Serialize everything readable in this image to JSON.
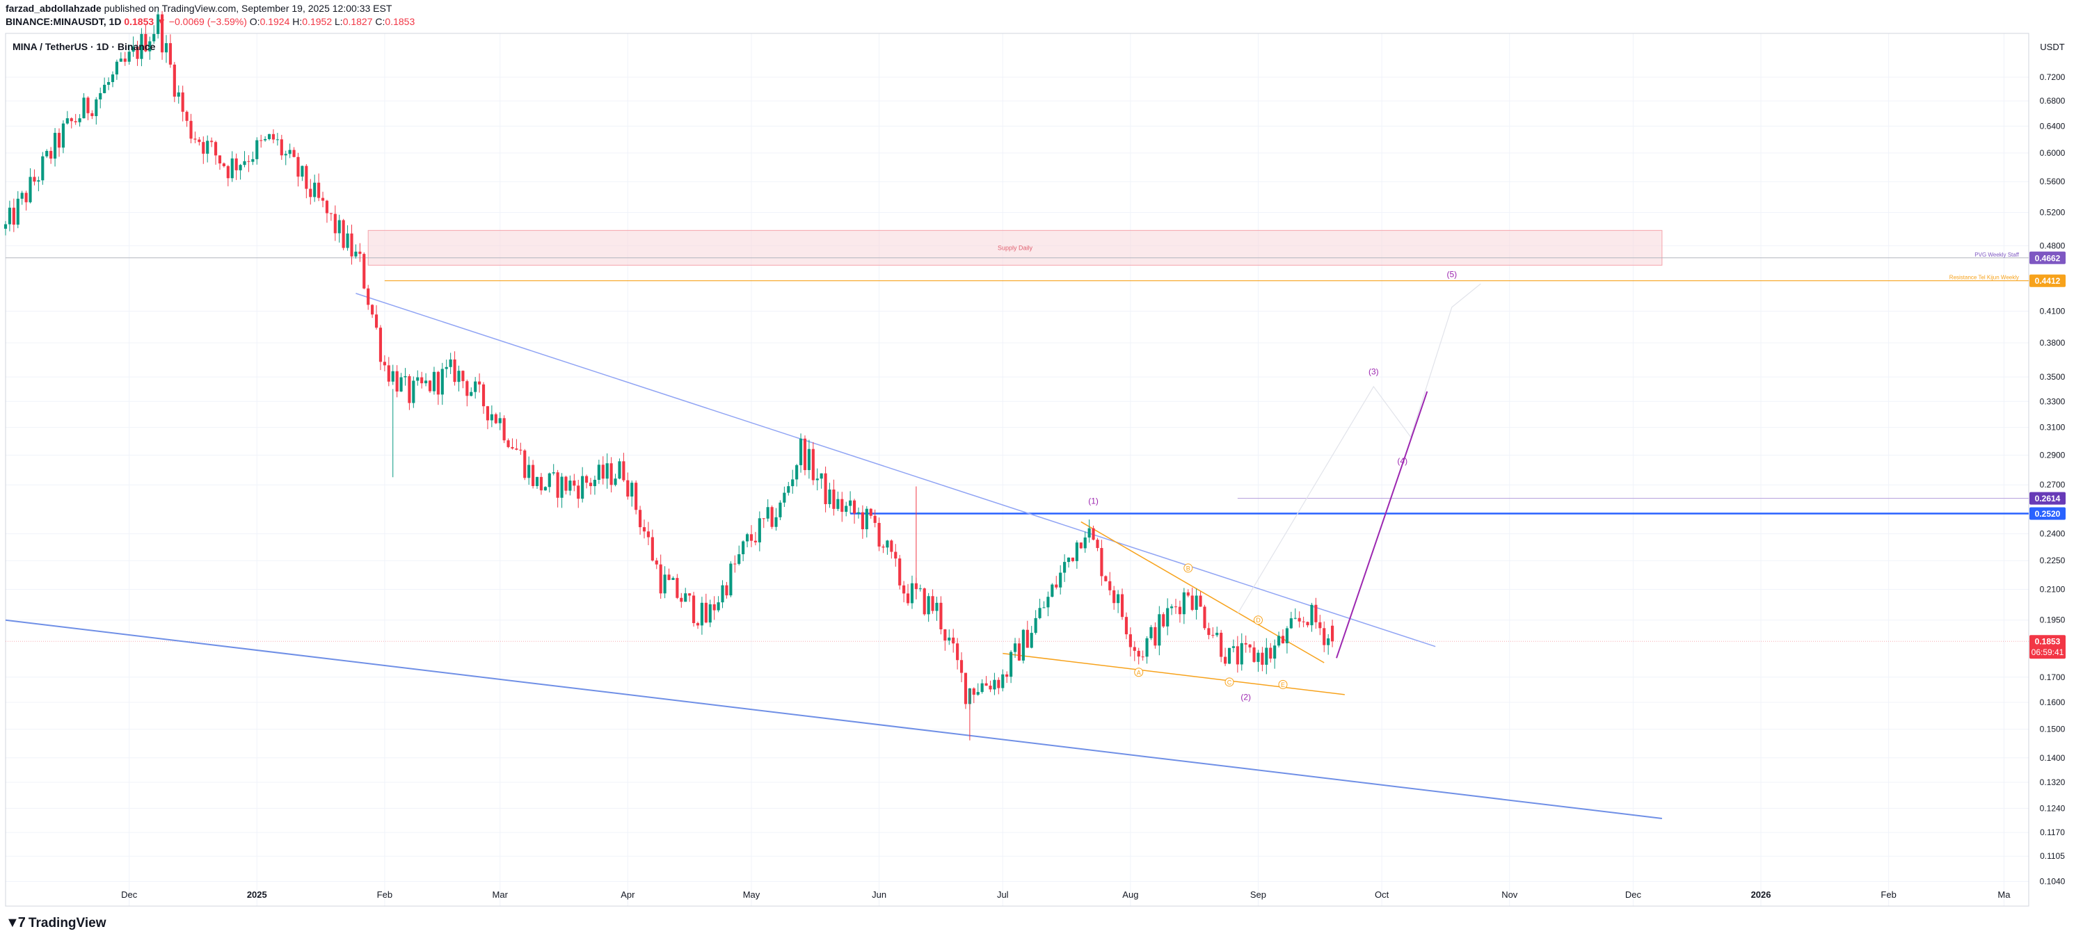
{
  "header": {
    "author": "farzad_abdollahzade",
    "published": "published on TradingView.com, September 19, 2025 12:00:33 EST",
    "symbol": "BINANCE:MINAUSDT, 1D",
    "last": "0.1853",
    "change": "▼ −0.0069 (−3.59%)",
    "o_label": "O:",
    "o": "0.1924",
    "h_label": "H:",
    "h": "0.1952",
    "l_label": "L:",
    "l": "0.1827",
    "c_label": "C:",
    "c": "0.1853"
  },
  "legend_title": "MINA / TetherUS · 1D · Binance",
  "footer": {
    "brand": "TradingView",
    "logo_icon": "tradingview-logo-icon"
  },
  "colors": {
    "up": "#089981",
    "down": "#f23645",
    "supply": "#f8d7da",
    "blue": "#2962ff",
    "orange": "#f7a21b",
    "purple": "#9c27b0"
  },
  "chart_data": {
    "type": "candlestick",
    "title": "MINA / TetherUS · 1D · Binance",
    "y_unit": "USDT",
    "y_scale": "log",
    "y_ticks": [
      "0.7200",
      "0.6800",
      "0.6400",
      "0.6000",
      "0.5600",
      "0.5200",
      "0.4800",
      "0.4100",
      "0.3800",
      "0.3500",
      "0.3300",
      "0.3100",
      "0.2900",
      "0.2700",
      "0.2400",
      "0.2250",
      "0.2100",
      "0.1950",
      "0.1700",
      "0.1600",
      "0.1500",
      "0.1400",
      "0.1320",
      "0.1240",
      "0.1170",
      "0.1105",
      "0.1040"
    ],
    "x_ticks": [
      "Dec",
      "2025",
      "Feb",
      "Mar",
      "Apr",
      "May",
      "Jun",
      "Jul",
      "Aug",
      "Sep",
      "Oct",
      "Nov",
      "Dec",
      "2026",
      "Feb",
      "Ma"
    ],
    "x_range": [
      "2024-11-01",
      "2026-03-07"
    ],
    "y_range": [
      0.098,
      0.8
    ],
    "price_label": {
      "value": "0.1853",
      "countdown": "06:59:41"
    },
    "levels": [
      {
        "label": "PVG Weekly Staff",
        "value": "0.4662"
      },
      {
        "label": "Resistance Tel Kijun Weekly",
        "value": "0.4412"
      },
      {
        "label": "",
        "value": "0.2614"
      },
      {
        "label": "",
        "value": "0.2520"
      }
    ],
    "supply_zone": {
      "label": "Supply Daily",
      "low": 0.458,
      "high": 0.498,
      "from": "2025-01-28",
      "to": "2025-12-08"
    },
    "wave_labels": [
      "(1)",
      "(2)",
      "(3)",
      "(4)",
      "(5)"
    ],
    "abc_labels": [
      "A",
      "B",
      "C",
      "D",
      "E"
    ],
    "anchors": [
      [
        "2024-11-01",
        0.5
      ],
      [
        "2024-11-15",
        0.63
      ],
      [
        "2024-11-30",
        0.74
      ],
      [
        "2024-12-08",
        0.82
      ],
      [
        "2024-12-15",
        0.64
      ],
      [
        "2024-12-25",
        0.58
      ],
      [
        "2025-01-05",
        0.62
      ],
      [
        "2025-01-15",
        0.54
      ],
      [
        "2025-01-26",
        0.46
      ],
      [
        "2025-02-01",
        0.36
      ],
      [
        "2025-02-07",
        0.335
      ],
      [
        "2025-02-18",
        0.355
      ],
      [
        "2025-03-01",
        0.315
      ],
      [
        "2025-03-10",
        0.27
      ],
      [
        "2025-03-20",
        0.27
      ],
      [
        "2025-03-31",
        0.28
      ],
      [
        "2025-04-09",
        0.215
      ],
      [
        "2025-04-20",
        0.195
      ],
      [
        "2025-04-30",
        0.235
      ],
      [
        "2025-05-08",
        0.255
      ],
      [
        "2025-05-13",
        0.295
      ],
      [
        "2025-05-20",
        0.26
      ],
      [
        "2025-05-31",
        0.245
      ],
      [
        "2025-06-07",
        0.21
      ],
      [
        "2025-06-15",
        0.2
      ],
      [
        "2025-06-22",
        0.165
      ],
      [
        "2025-07-01",
        0.17
      ],
      [
        "2025-07-12",
        0.205
      ],
      [
        "2025-07-21",
        0.245
      ],
      [
        "2025-08-03",
        0.18
      ],
      [
        "2025-08-15",
        0.21
      ],
      [
        "2025-08-25",
        0.178
      ],
      [
        "2025-09-04",
        0.18
      ],
      [
        "2025-09-13",
        0.198
      ],
      [
        "2025-09-19",
        0.1853
      ]
    ]
  }
}
